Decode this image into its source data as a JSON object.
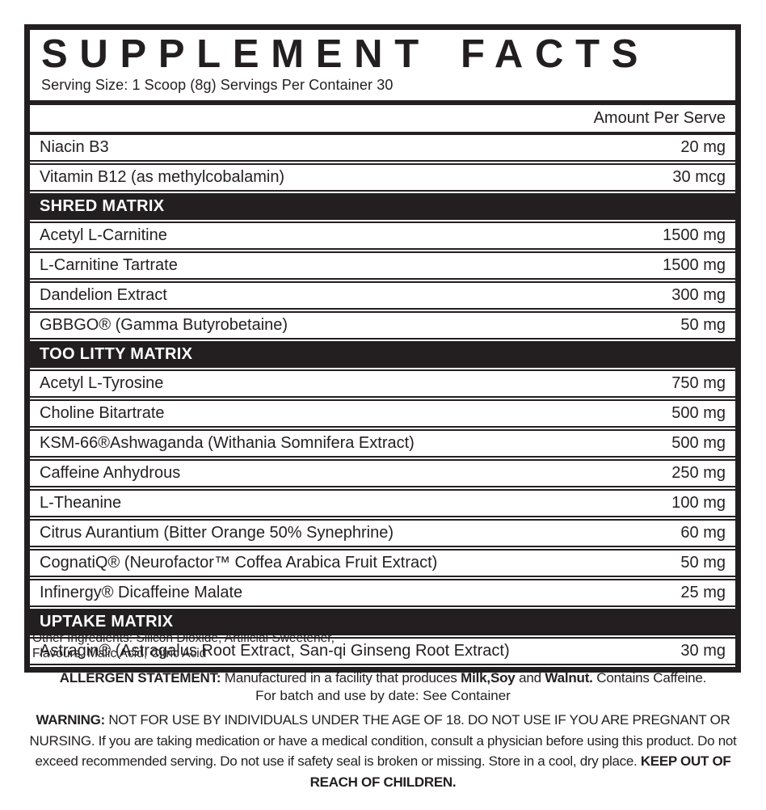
{
  "colors": {
    "label_black": "#231f20",
    "white": "#ffffff"
  },
  "header": {
    "title": "SUPPLEMENT FACTS",
    "serving_line": "Serving Size: 1 Scoop (8g) Servings Per Container 30",
    "amount_column_header": "Amount Per Serve"
  },
  "table": {
    "rows": [
      {
        "type": "item",
        "name": "Niacin B3",
        "amount": "20 mg"
      },
      {
        "type": "item",
        "name": "Vitamin B12 (as methylcobalamin)",
        "amount": "30 mcg"
      },
      {
        "type": "section",
        "name": "SHRED MATRIX"
      },
      {
        "type": "item",
        "name": "Acetyl L-Carnitine",
        "amount": "1500 mg"
      },
      {
        "type": "item",
        "name": "L-Carnitine Tartrate",
        "amount": "1500 mg"
      },
      {
        "type": "item",
        "name": "Dandelion Extract",
        "amount": "300 mg"
      },
      {
        "type": "item",
        "name": "GBBGO® (Gamma Butyrobetaine)",
        "amount": "50 mg"
      },
      {
        "type": "section",
        "name": "TOO LITTY MATRIX"
      },
      {
        "type": "item",
        "name": "Acetyl L-Tyrosine",
        "amount": "750 mg"
      },
      {
        "type": "item",
        "name": "Choline Bitartrate",
        "amount": "500 mg"
      },
      {
        "type": "item",
        "name": "KSM-66®Ashwaganda (Withania Somnifera Extract)",
        "amount": "500 mg"
      },
      {
        "type": "item",
        "name": "Caffeine Anhydrous",
        "amount": "250 mg"
      },
      {
        "type": "item",
        "name": "L-Theanine",
        "amount": "100 mg"
      },
      {
        "type": "item",
        "name": "Citrus Aurantium (Bitter Orange 50% Synephrine)",
        "amount": "60 mg"
      },
      {
        "type": "item",
        "name": "CognatiQ® (Neurofactor™ Coffea Arabica Fruit Extract)",
        "amount": "50 mg"
      },
      {
        "type": "item",
        "name": "Infinergy® Dicaffeine Malate",
        "amount": "25 mg"
      },
      {
        "type": "section",
        "name": "UPTAKE MATRIX"
      },
      {
        "type": "item",
        "name": "Astragin® (Astragalus Root Extract, San-qi Ginseng Root Extract)",
        "amount": "30 mg"
      }
    ]
  },
  "footer": {
    "other_ingredients_lines": [
      "Other Ingredients: Silicon Dioxide, Artificial Sweetener,",
      "Flavours, Malic Acid, Citric Acid"
    ],
    "allergen_segments": [
      {
        "text": "ALLERGEN STATEMENT: ",
        "bold": true
      },
      {
        "text": "Manufactured in a facility that produces ",
        "bold": false
      },
      {
        "text": "Milk,Soy",
        "bold": true
      },
      {
        "text": " and ",
        "bold": false
      },
      {
        "text": "Walnut.",
        "bold": true
      },
      {
        "text": " Contains Caffeine.",
        "bold": false
      }
    ],
    "batch_line": "For batch and use by date: See Container",
    "warning_segments": [
      {
        "text": "WARNING: ",
        "bold": true
      },
      {
        "text": "NOT FOR USE BY INDIVIDUALS UNDER THE AGE OF 18. DO NOT USE IF YOU ARE PREGNANT OR NURSING. If you are taking medication or have a medical condition, consult a physician before using this product. Do not exceed recommended serving. Do not use if safety seal is broken or missing. Store in a cool, dry place. ",
        "bold": false
      },
      {
        "text": "KEEP OUT OF REACH OF CHILDREN.",
        "bold": true
      }
    ]
  }
}
